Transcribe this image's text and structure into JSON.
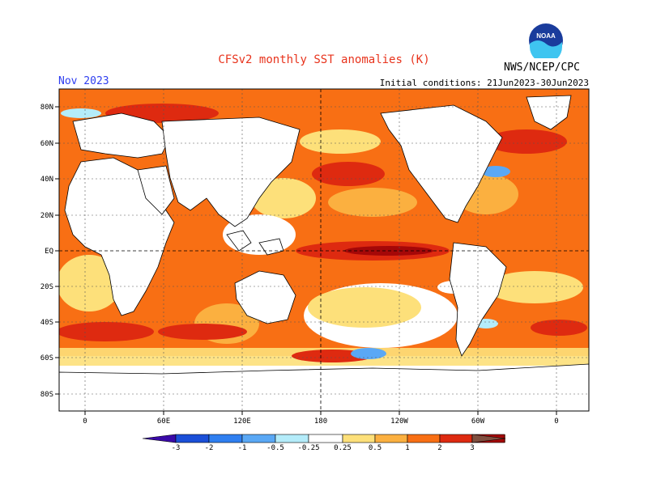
{
  "header": {
    "title": "CFSv2 monthly SST anomalies (K)",
    "month": "Nov 2023",
    "initial_conditions": "Initial conditions: 21Jun2023-30Jun2023",
    "agency": "NWS/NCEP/CPC",
    "logo_text": "NOAA"
  },
  "map": {
    "lat_labels": [
      "80N",
      "60N",
      "40N",
      "20N",
      "EQ",
      "20S",
      "40S",
      "60S",
      "80S"
    ],
    "lon_labels": [
      "0",
      "60E",
      "120E",
      "180",
      "120W",
      "60W",
      "0"
    ]
  },
  "colorbar": {
    "tick_labels": [
      "-3",
      "-2",
      "-1",
      "-0.5",
      "-0.25",
      "0.25",
      "0.5",
      "1",
      "2",
      "3"
    ],
    "colors": [
      "#3a0aa8",
      "#1b4fd8",
      "#2f7ff0",
      "#5aa8f5",
      "#b4ecfa",
      "#ffffff",
      "#fde07a",
      "#fbb040",
      "#f86f14",
      "#de2a10",
      "#a50808",
      "#805040"
    ]
  },
  "colors": {
    "title": "#e8331c",
    "month": "#2d3df0",
    "land": "#ffffff",
    "warm_base": "#f86f14"
  }
}
